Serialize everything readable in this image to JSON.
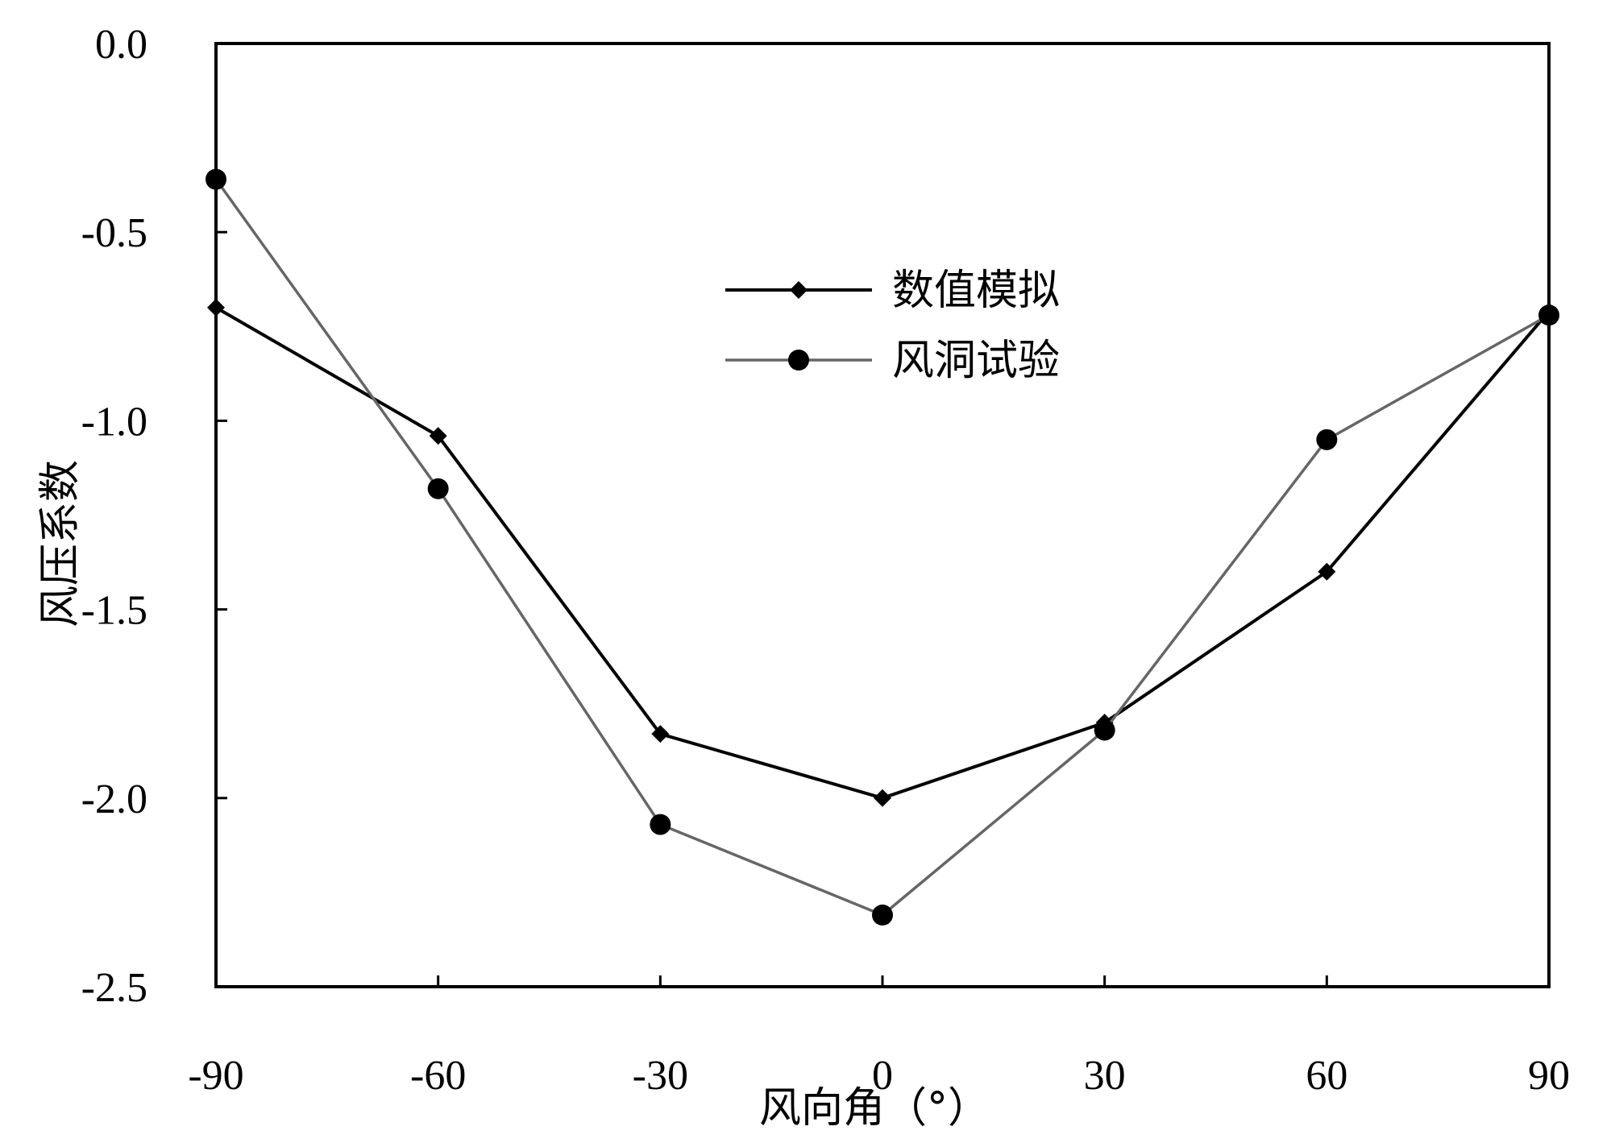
{
  "chart_data": {
    "type": "line",
    "xlabel": "风向角（°）",
    "ylabel": "风压系数",
    "xlim": [
      -90,
      90
    ],
    "ylim": [
      -2.5,
      0.0
    ],
    "xticks": [
      "-90",
      "-60",
      "-30",
      "0",
      "30",
      "60",
      "90"
    ],
    "yticks": [
      "0.0",
      "-0.5",
      "-1.0",
      "-1.5",
      "-2.0",
      "-2.5"
    ],
    "grid": false,
    "legend_position": "center-top",
    "series": [
      {
        "name": "数值模拟",
        "color": "#000000",
        "marker": "diamond",
        "x": [
          -90,
          -60,
          -30,
          0,
          30,
          60,
          90
        ],
        "y": [
          -0.7,
          -1.04,
          -1.83,
          -2.0,
          -1.8,
          -1.4,
          -0.71
        ]
      },
      {
        "name": "风洞试验",
        "color": "#666666",
        "marker": "circle",
        "x": [
          -90,
          -60,
          -30,
          0,
          30,
          60,
          90
        ],
        "y": [
          -0.36,
          -1.18,
          -2.07,
          -2.31,
          -1.82,
          -1.05,
          -0.72
        ]
      }
    ]
  }
}
